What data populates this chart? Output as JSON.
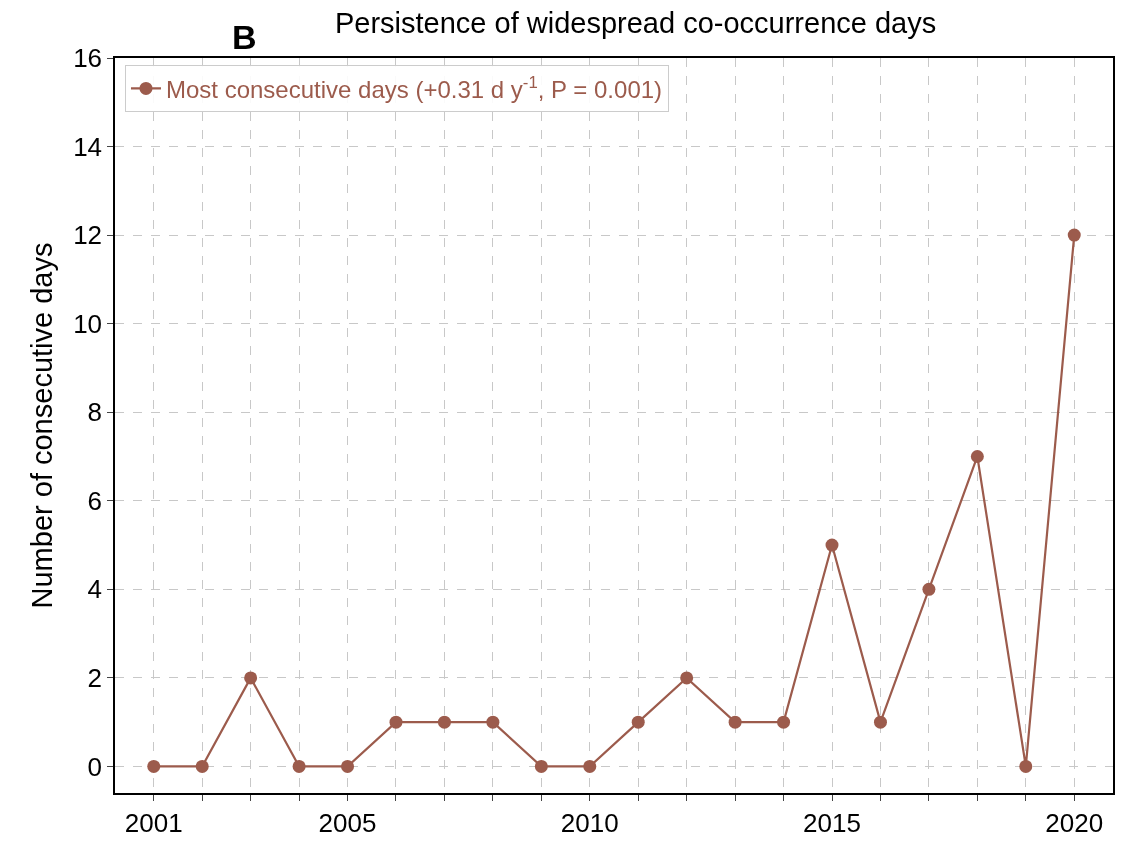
{
  "chart_data": {
    "type": "line",
    "title": "Persistence of widespread co-occurrence days",
    "ylabel": "Number of consecutive days",
    "annotations": [
      "B"
    ],
    "x": [
      2001,
      2002,
      2003,
      2004,
      2005,
      2006,
      2007,
      2008,
      2009,
      2010,
      2011,
      2012,
      2013,
      2014,
      2015,
      2016,
      2017,
      2018,
      2019,
      2020
    ],
    "series": [
      {
        "name": "Most consecutive days (+0.31 d y$^{-1}$, P = 0.001)",
        "color": "#9c5b4c",
        "values": [
          0,
          0,
          2,
          0,
          0,
          1,
          1,
          1,
          0,
          0,
          1,
          2,
          1,
          1,
          5,
          1,
          4,
          7,
          0,
          12
        ]
      }
    ],
    "xlim": [
      2000.2,
      2020.8
    ],
    "xticks": [
      2001,
      {
        "value": 2002,
        "label": null
      },
      {
        "value": 2003,
        "label": null
      },
      {
        "value": 2004,
        "label": null
      },
      2005,
      {
        "value": 2006,
        "label": null
      },
      {
        "value": 2007,
        "label": null
      },
      {
        "value": 2008,
        "label": null
      },
      {
        "value": 2009,
        "label": null
      },
      2010,
      {
        "value": 2011,
        "label": null
      },
      {
        "value": 2012,
        "label": null
      },
      {
        "value": 2013,
        "label": null
      },
      {
        "value": 2014,
        "label": null
      },
      2015,
      {
        "value": 2016,
        "label": null
      },
      {
        "value": 2017,
        "label": null
      },
      {
        "value": 2018,
        "label": null
      },
      {
        "value": 2019,
        "label": null
      },
      2020
    ],
    "ylim": [
      -0.6,
      16
    ],
    "yticks": [
      0,
      2,
      4,
      6,
      8,
      10,
      12,
      14,
      16
    ],
    "grid": true,
    "legend": "top left",
    "marker": "circle",
    "line_style": "solid"
  }
}
